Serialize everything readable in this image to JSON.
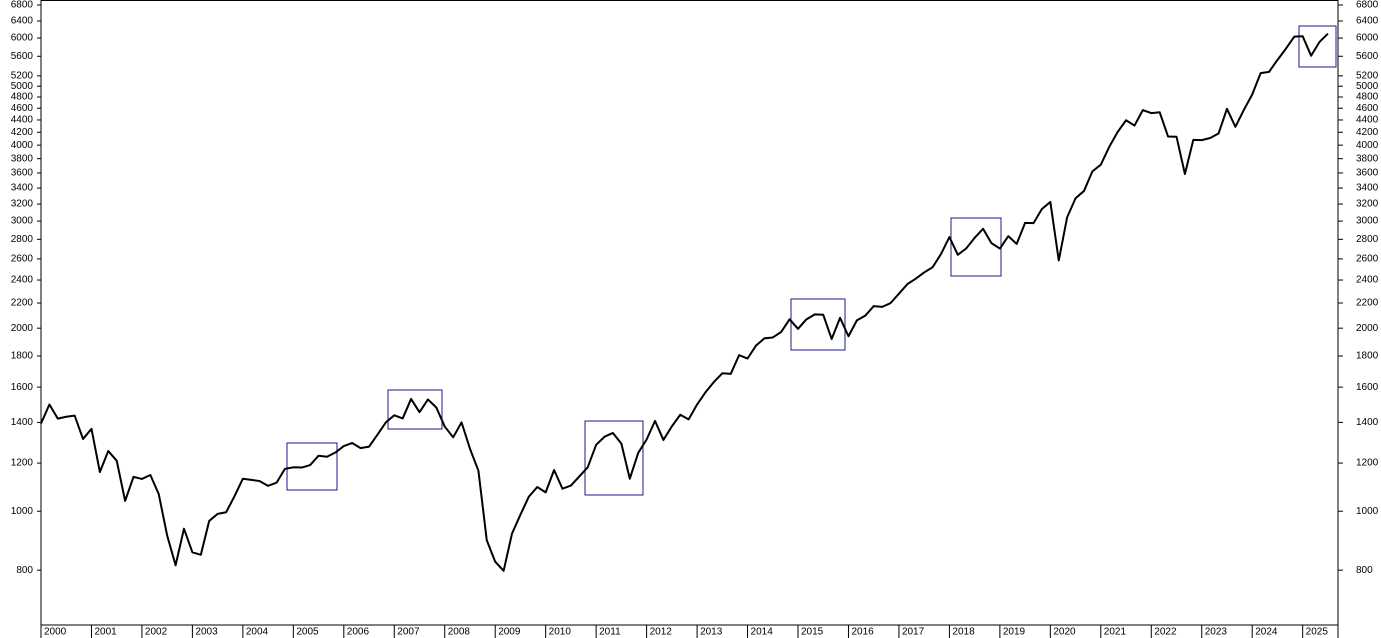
{
  "chart_data": {
    "type": "line",
    "log_scale": true,
    "color": "#000000",
    "xlim": [
      2000,
      2025.7
    ],
    "xticks": [
      2000,
      2001,
      2002,
      2003,
      2004,
      2005,
      2006,
      2007,
      2008,
      2009,
      2010,
      2011,
      2012,
      2013,
      2014,
      2015,
      2016,
      2017,
      2018,
      2019,
      2020,
      2021,
      2022,
      2023,
      2024,
      2025
    ],
    "ylim": [
      650,
      6930
    ],
    "yticks": [
      800,
      1000,
      1200,
      1400,
      1600,
      1800,
      2000,
      2200,
      2400,
      2600,
      2800,
      3000,
      3200,
      3400,
      3600,
      3800,
      4000,
      4200,
      4400,
      4600,
      4800,
      5000,
      5200,
      5600,
      6000,
      6400,
      6800
    ],
    "x": [
      2000,
      2000.167,
      2000.333,
      2000.5,
      2000.667,
      2000.833,
      2001,
      2001.167,
      2001.333,
      2001.5,
      2001.667,
      2001.833,
      2002,
      2002.167,
      2002.333,
      2002.5,
      2002.667,
      2002.833,
      2003,
      2003.167,
      2003.333,
      2003.5,
      2003.667,
      2003.833,
      2004,
      2004.167,
      2004.333,
      2004.5,
      2004.667,
      2004.833,
      2005,
      2005.167,
      2005.333,
      2005.5,
      2005.667,
      2005.833,
      2006,
      2006.167,
      2006.333,
      2006.5,
      2006.667,
      2006.833,
      2007,
      2007.167,
      2007.333,
      2007.5,
      2007.667,
      2007.833,
      2008,
      2008.167,
      2008.333,
      2008.5,
      2008.667,
      2008.833,
      2009,
      2009.167,
      2009.333,
      2009.5,
      2009.667,
      2009.833,
      2010,
      2010.167,
      2010.333,
      2010.5,
      2010.667,
      2010.833,
      2011,
      2011.167,
      2011.333,
      2011.5,
      2011.667,
      2011.833,
      2012,
      2012.167,
      2012.333,
      2012.5,
      2012.667,
      2012.833,
      2013,
      2013.167,
      2013.333,
      2013.5,
      2013.667,
      2013.833,
      2014,
      2014.167,
      2014.333,
      2014.5,
      2014.667,
      2014.833,
      2015,
      2015.167,
      2015.333,
      2015.5,
      2015.667,
      2015.833,
      2016,
      2016.167,
      2016.333,
      2016.5,
      2016.667,
      2016.833,
      2017,
      2017.167,
      2017.333,
      2017.5,
      2017.667,
      2017.833,
      2018,
      2018.167,
      2018.333,
      2018.5,
      2018.667,
      2018.833,
      2019,
      2019.167,
      2019.333,
      2019.5,
      2019.667,
      2019.833,
      2020,
      2020.167,
      2020.333,
      2020.5,
      2020.667,
      2020.833,
      2021,
      2021.167,
      2021.333,
      2021.5,
      2021.667,
      2021.833,
      2022,
      2022.167,
      2022.333,
      2022.5,
      2022.667,
      2022.833,
      2023,
      2023.167,
      2023.333,
      2023.5,
      2023.667,
      2023.833,
      2024,
      2024.167,
      2024.333,
      2024.5,
      2024.667,
      2024.833,
      2025,
      2025.167,
      2025.333,
      2025.5
    ],
    "values": [
      1394,
      1498,
      1420,
      1430,
      1436,
      1315,
      1366,
      1160,
      1256,
      1211,
      1040,
      1139,
      1130,
      1147,
      1067,
      912,
      815,
      936,
      856,
      848,
      964,
      990,
      996,
      1058,
      1131,
      1126,
      1121,
      1101,
      1114,
      1174,
      1181,
      1180,
      1191,
      1234,
      1229,
      1249,
      1280,
      1295,
      1270,
      1277,
      1336,
      1400,
      1438,
      1421,
      1530,
      1455,
      1527,
      1481,
      1378,
      1323,
      1400,
      1267,
      1166,
      896,
      826,
      798,
      919,
      987,
      1057,
      1096,
      1074,
      1169,
      1089,
      1102,
      1141,
      1181,
      1286,
      1326,
      1345,
      1292,
      1131,
      1247,
      1312,
      1408,
      1310,
      1379,
      1441,
      1416,
      1498,
      1569,
      1631,
      1686,
      1682,
      1806,
      1783,
      1872,
      1924,
      1931,
      1972,
      2068,
      1995,
      2068,
      2107,
      2104,
      1920,
      2080,
      1940,
      2060,
      2097,
      2174,
      2168,
      2199,
      2279,
      2363,
      2412,
      2470,
      2519,
      2648,
      2824,
      2641,
      2705,
      2816,
      2914,
      2760,
      2704,
      2834,
      2752,
      2980,
      2977,
      3141,
      3226,
      2585,
      3044,
      3271,
      3363,
      3622,
      3714,
      3973,
      4204,
      4395,
      4308,
      4567,
      4516,
      4530,
      4132,
      4130,
      3586,
      4080,
      4077,
      4109,
      4180,
      4589,
      4288,
      4568,
      4846,
      5254,
      5278,
      5522,
      5762,
      6032,
      6041,
      5612,
      5912,
      6100
    ]
  }
}
